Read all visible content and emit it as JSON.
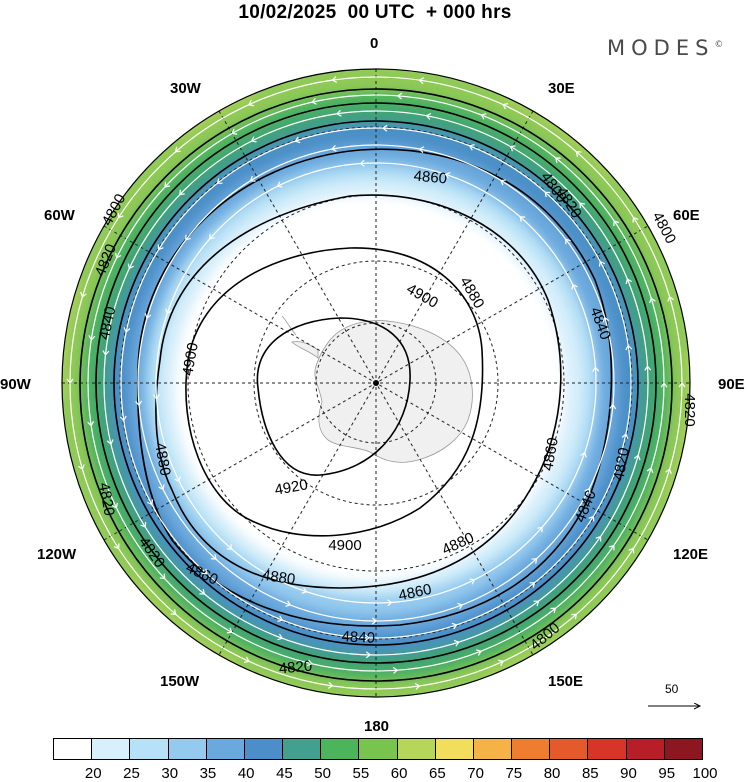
{
  "header": {
    "title": "10/02/2025  00 UTC  + 000 hrs",
    "brand": "MODES",
    "brand_mark": "©"
  },
  "map": {
    "projection": "south-polar-stereographic",
    "field": "500 hPa geopotential height (m) and wind speed",
    "longitude_labels": [
      {
        "id": "lon-0",
        "text": "0"
      },
      {
        "id": "lon-30e",
        "text": "30E"
      },
      {
        "id": "lon-60e",
        "text": "60E"
      },
      {
        "id": "lon-90e",
        "text": "90E"
      },
      {
        "id": "lon-120e",
        "text": "120E"
      },
      {
        "id": "lon-150e",
        "text": "150E"
      },
      {
        "id": "lon-180",
        "text": "180"
      },
      {
        "id": "lon-150w",
        "text": "150W"
      },
      {
        "id": "lon-120w",
        "text": "120W"
      },
      {
        "id": "lon-90w",
        "text": "90W"
      },
      {
        "id": "lon-60w",
        "text": "60W"
      },
      {
        "id": "lon-30w",
        "text": "30W"
      }
    ],
    "contour_labels": [
      "4800",
      "4800",
      "4820",
      "4820",
      "4820",
      "4820",
      "4840",
      "4840",
      "4840",
      "4840",
      "4860",
      "4860",
      "4860",
      "4860",
      "4880",
      "4880",
      "4880",
      "4880",
      "4900",
      "4900",
      "4900",
      "4920",
      "4800",
      "4820",
      "4820",
      "4800",
      "4820"
    ],
    "vector_reference": {
      "value": "50"
    }
  },
  "colorbar": {
    "colors": [
      "#ffffff",
      "#d7f0fb",
      "#b7e1f6",
      "#93caee",
      "#6aa9de",
      "#4c8ec9",
      "#43a08f",
      "#4cb55c",
      "#79c34f",
      "#b5d65a",
      "#f1de5d",
      "#f5b347",
      "#ef7d30",
      "#e55a2c",
      "#d73527",
      "#b81e27",
      "#8c1720"
    ],
    "labels": [
      "20",
      "25",
      "30",
      "35",
      "40",
      "45",
      "50",
      "55",
      "60",
      "65",
      "70",
      "75",
      "80",
      "85",
      "90",
      "95",
      "100"
    ]
  }
}
